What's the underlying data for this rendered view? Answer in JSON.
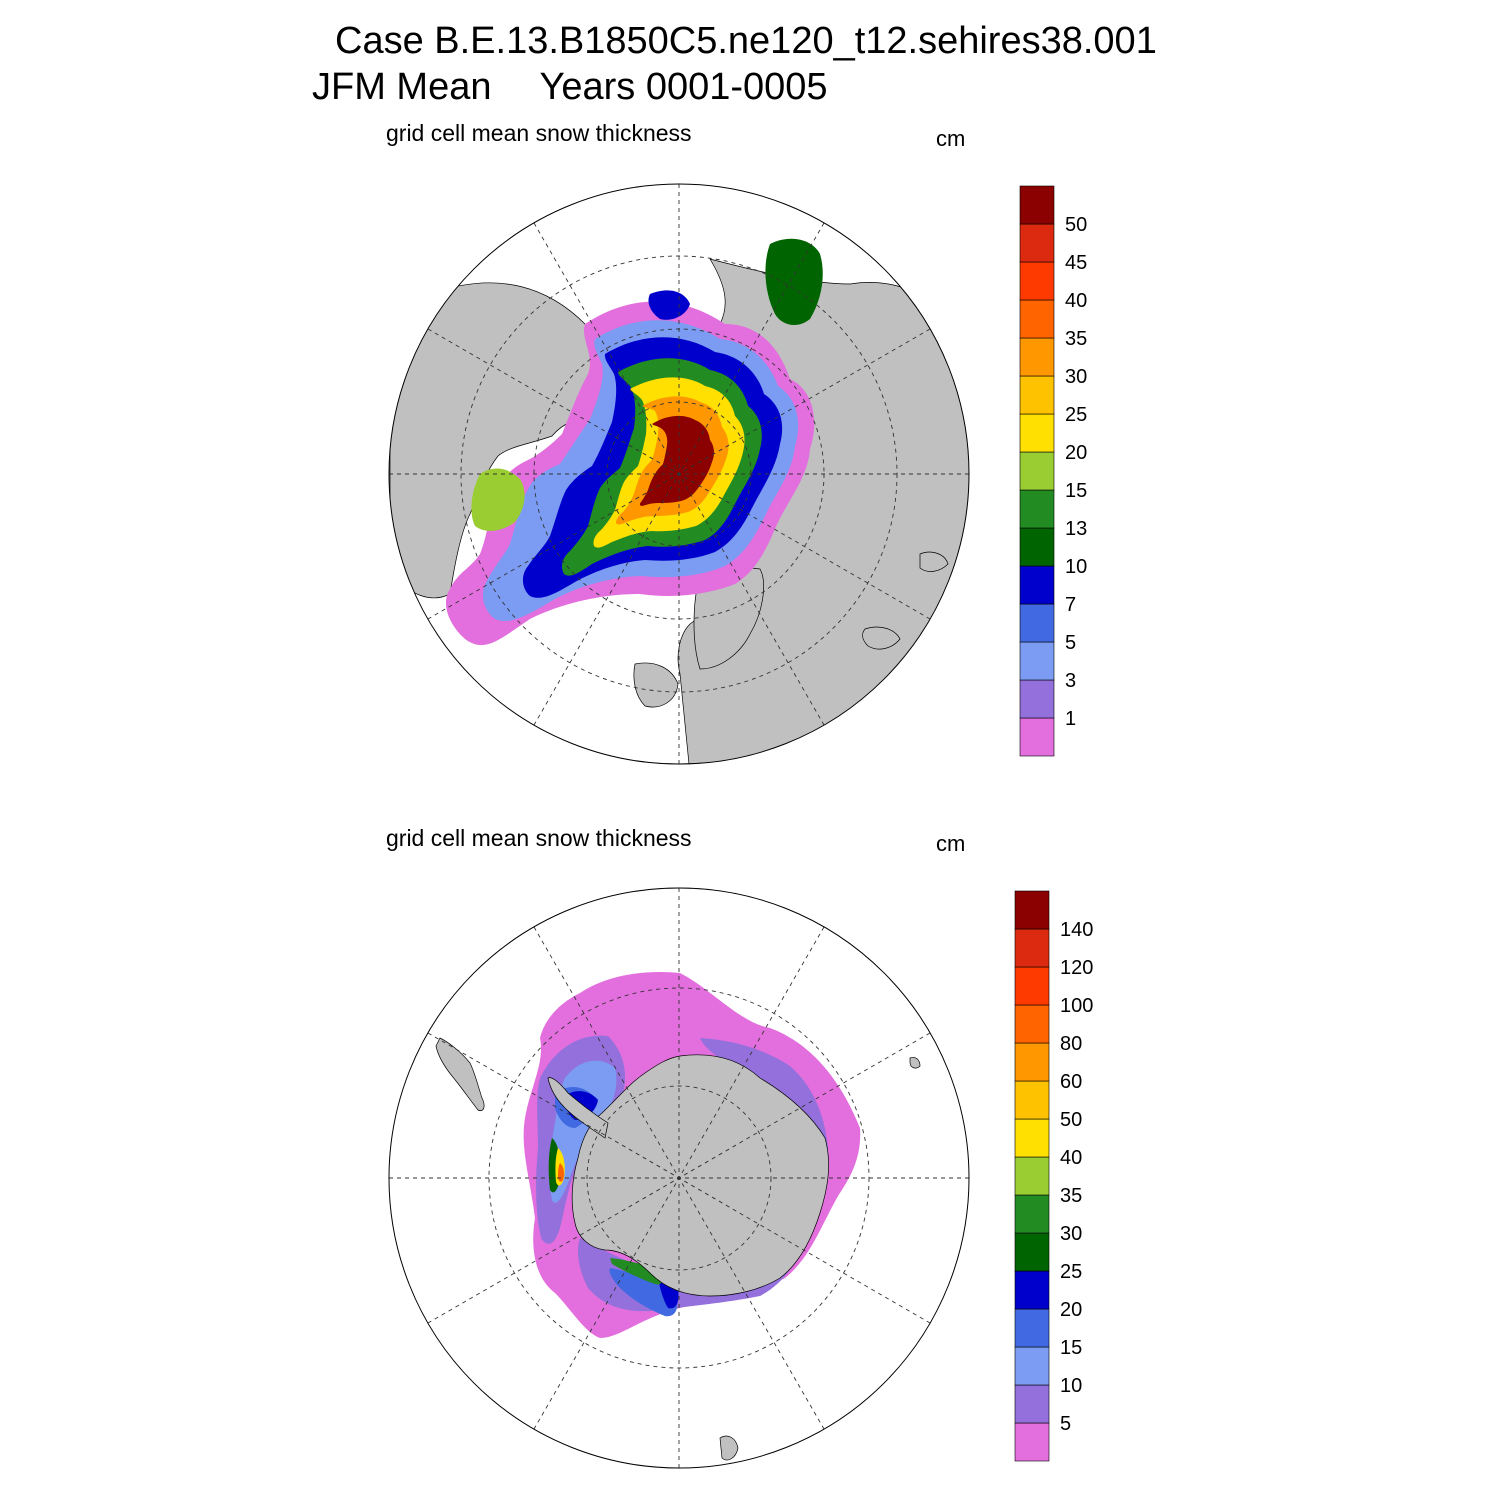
{
  "title": {
    "line1": "Case B.E.13.B1850C5.ne120_t12.sehires38.001",
    "season": "JFM Mean",
    "years": "Years 0001-0005"
  },
  "panels": [
    {
      "label": "grid cell mean snow thickness",
      "units": "cm",
      "hemisphere": "north",
      "colorbar": {
        "levels": [
          "1",
          "3",
          "5",
          "7",
          "10",
          "13",
          "15",
          "20",
          "25",
          "30",
          "35",
          "40",
          "45",
          "50"
        ],
        "colors": [
          "#e36fde",
          "#9370db",
          "#7b9cf2",
          "#4169e1",
          "#0000cd",
          "#006400",
          "#228b22",
          "#9acd32",
          "#ffe000",
          "#ffc200",
          "#ff9700",
          "#ff6400",
          "#ff3a00",
          "#dc2a10",
          "#8b0000"
        ]
      }
    },
    {
      "label": "grid cell mean snow thickness",
      "units": "cm",
      "hemisphere": "south",
      "colorbar": {
        "levels": [
          "5",
          "10",
          "15",
          "20",
          "25",
          "30",
          "35",
          "40",
          "50",
          "60",
          "80",
          "100",
          "120",
          "140"
        ],
        "colors": [
          "#e36fde",
          "#9370db",
          "#7b9cf2",
          "#4169e1",
          "#0000cd",
          "#006400",
          "#228b22",
          "#9acd32",
          "#ffe000",
          "#ffc200",
          "#ff9700",
          "#ff6400",
          "#ff3a00",
          "#dc2a10",
          "#8b0000"
        ]
      }
    }
  ],
  "map_style": {
    "land_color": "#c0c0c0",
    "ocean_color": "#ffffff",
    "gridline_style": "dashed"
  }
}
